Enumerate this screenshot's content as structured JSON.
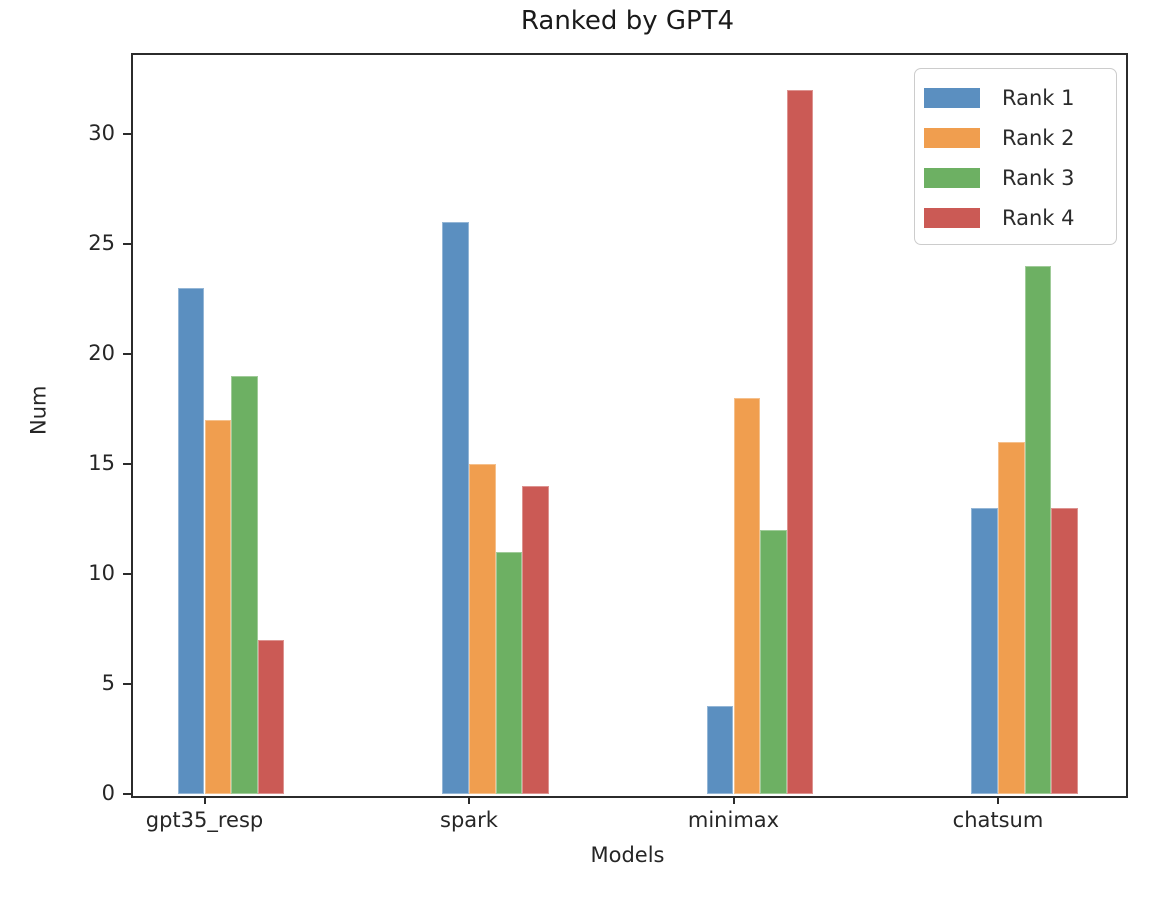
{
  "chart_data": {
    "type": "bar",
    "title": "Ranked by GPT4",
    "xlabel": "Models",
    "ylabel": "Num",
    "categories": [
      "gpt35_resp",
      "spark",
      "minimax",
      "chatsum"
    ],
    "series": [
      {
        "name": "Rank 1",
        "color": "#5b8fc0",
        "values": [
          23,
          26,
          4,
          13
        ]
      },
      {
        "name": "Rank 2",
        "color": "#f09e4f",
        "values": [
          17,
          15,
          18,
          16
        ]
      },
      {
        "name": "Rank 3",
        "color": "#6db063",
        "values": [
          19,
          11,
          12,
          24
        ]
      },
      {
        "name": "Rank 4",
        "color": "#cb5a55",
        "values": [
          7,
          14,
          32,
          13
        ]
      }
    ],
    "yticks": [
      0,
      5,
      10,
      15,
      20,
      25,
      30
    ],
    "ylim": [
      0,
      33.7
    ],
    "grid": false,
    "legend_position": "upper right",
    "axis_color": "#2b2b2b"
  }
}
